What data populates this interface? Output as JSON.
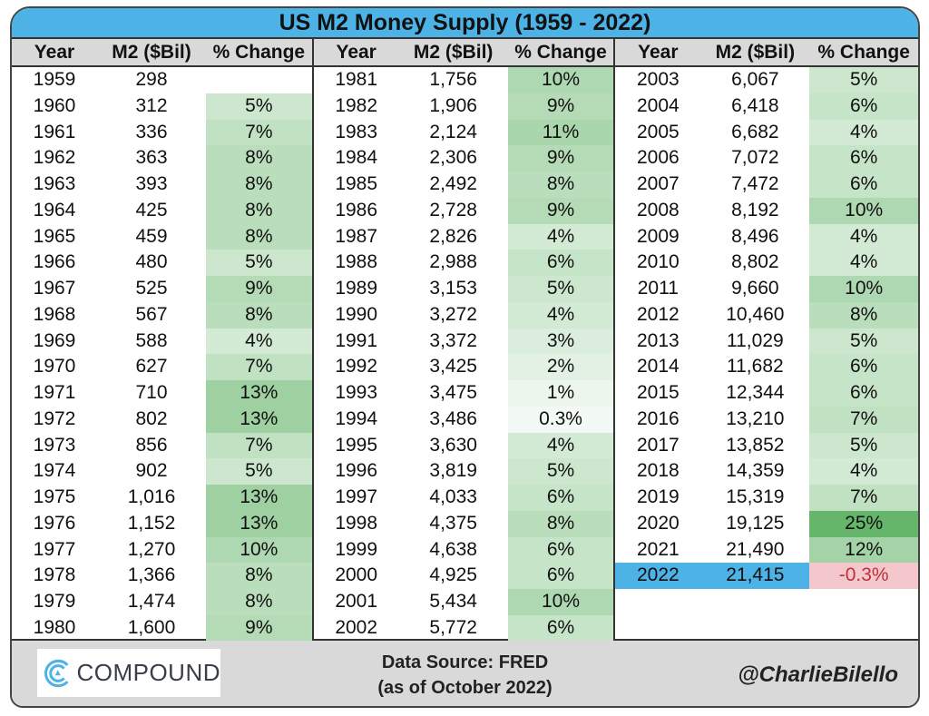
{
  "chart_data": {
    "type": "table",
    "title": "US M2 Money Supply (1959 - 2022)",
    "columns": [
      "Year",
      "M2 ($Bil)",
      "% Change"
    ],
    "sections": [
      [
        [
          "1959",
          "298",
          ""
        ],
        [
          "1960",
          "312",
          "5%"
        ],
        [
          "1961",
          "336",
          "7%"
        ],
        [
          "1962",
          "363",
          "8%"
        ],
        [
          "1963",
          "393",
          "8%"
        ],
        [
          "1964",
          "425",
          "8%"
        ],
        [
          "1965",
          "459",
          "8%"
        ],
        [
          "1966",
          "480",
          "5%"
        ],
        [
          "1967",
          "525",
          "9%"
        ],
        [
          "1968",
          "567",
          "8%"
        ],
        [
          "1969",
          "588",
          "4%"
        ],
        [
          "1970",
          "627",
          "7%"
        ],
        [
          "1971",
          "710",
          "13%"
        ],
        [
          "1972",
          "802",
          "13%"
        ],
        [
          "1973",
          "856",
          "7%"
        ],
        [
          "1974",
          "902",
          "5%"
        ],
        [
          "1975",
          "1,016",
          "13%"
        ],
        [
          "1976",
          "1,152",
          "13%"
        ],
        [
          "1977",
          "1,270",
          "10%"
        ],
        [
          "1978",
          "1,366",
          "8%"
        ],
        [
          "1979",
          "1,474",
          "8%"
        ],
        [
          "1980",
          "1,600",
          "9%"
        ]
      ],
      [
        [
          "1981",
          "1,756",
          "10%"
        ],
        [
          "1982",
          "1,906",
          "9%"
        ],
        [
          "1983",
          "2,124",
          "11%"
        ],
        [
          "1984",
          "2,306",
          "9%"
        ],
        [
          "1985",
          "2,492",
          "8%"
        ],
        [
          "1986",
          "2,728",
          "9%"
        ],
        [
          "1987",
          "2,826",
          "4%"
        ],
        [
          "1988",
          "2,988",
          "6%"
        ],
        [
          "1989",
          "3,153",
          "5%"
        ],
        [
          "1990",
          "3,272",
          "4%"
        ],
        [
          "1991",
          "3,372",
          "3%"
        ],
        [
          "1992",
          "3,425",
          "2%"
        ],
        [
          "1993",
          "3,475",
          "1%"
        ],
        [
          "1994",
          "3,486",
          "0.3%"
        ],
        [
          "1995",
          "3,630",
          "4%"
        ],
        [
          "1996",
          "3,819",
          "5%"
        ],
        [
          "1997",
          "4,033",
          "6%"
        ],
        [
          "1998",
          "4,375",
          "8%"
        ],
        [
          "1999",
          "4,638",
          "6%"
        ],
        [
          "2000",
          "4,925",
          "6%"
        ],
        [
          "2001",
          "5,434",
          "10%"
        ],
        [
          "2002",
          "5,772",
          "6%"
        ]
      ],
      [
        [
          "2003",
          "6,067",
          "5%"
        ],
        [
          "2004",
          "6,418",
          "6%"
        ],
        [
          "2005",
          "6,682",
          "4%"
        ],
        [
          "2006",
          "7,072",
          "6%"
        ],
        [
          "2007",
          "7,472",
          "6%"
        ],
        [
          "2008",
          "8,192",
          "10%"
        ],
        [
          "2009",
          "8,496",
          "4%"
        ],
        [
          "2010",
          "8,802",
          "4%"
        ],
        [
          "2011",
          "9,660",
          "10%"
        ],
        [
          "2012",
          "10,460",
          "8%"
        ],
        [
          "2013",
          "11,029",
          "5%"
        ],
        [
          "2014",
          "11,682",
          "6%"
        ],
        [
          "2015",
          "12,344",
          "6%"
        ],
        [
          "2016",
          "13,210",
          "7%"
        ],
        [
          "2017",
          "13,852",
          "5%"
        ],
        [
          "2018",
          "14,359",
          "4%"
        ],
        [
          "2019",
          "15,319",
          "7%"
        ],
        [
          "2020",
          "19,125",
          "25%"
        ],
        [
          "2021",
          "21,490",
          "12%"
        ],
        [
          "2022",
          "21,415",
          "-0.3%"
        ]
      ]
    ],
    "highlight_year": "2022"
  },
  "footer": {
    "logo_text": "COMPOUND",
    "source_line1": "Data Source: FRED",
    "source_line2": "(as of October 2022)",
    "handle": "@CharlieBilello"
  },
  "colors": {
    "title_bg": "#4db3e6",
    "header_bg": "#d9d9d9",
    "positive": "#63b468",
    "negative": "#f4c7cc",
    "negative_text": "#c0303c"
  }
}
